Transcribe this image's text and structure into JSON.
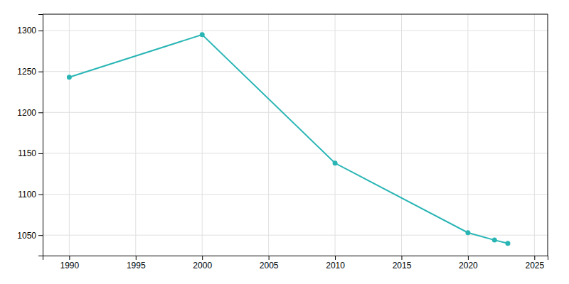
{
  "chart_data": {
    "type": "line",
    "x": [
      1990,
      2000,
      2010,
      2020,
      2022,
      2023
    ],
    "values": [
      1243,
      1295,
      1138,
      1053,
      1044,
      1040
    ],
    "color": "#2ab5b5",
    "marker": "circle",
    "xlim": [
      1988,
      2026
    ],
    "ylim": [
      1025,
      1320
    ],
    "xticks": [
      1990,
      1995,
      2000,
      2005,
      2010,
      2015,
      2020,
      2025
    ],
    "yticks": [
      1050,
      1100,
      1150,
      1200,
      1250,
      1300
    ],
    "grid": true
  }
}
